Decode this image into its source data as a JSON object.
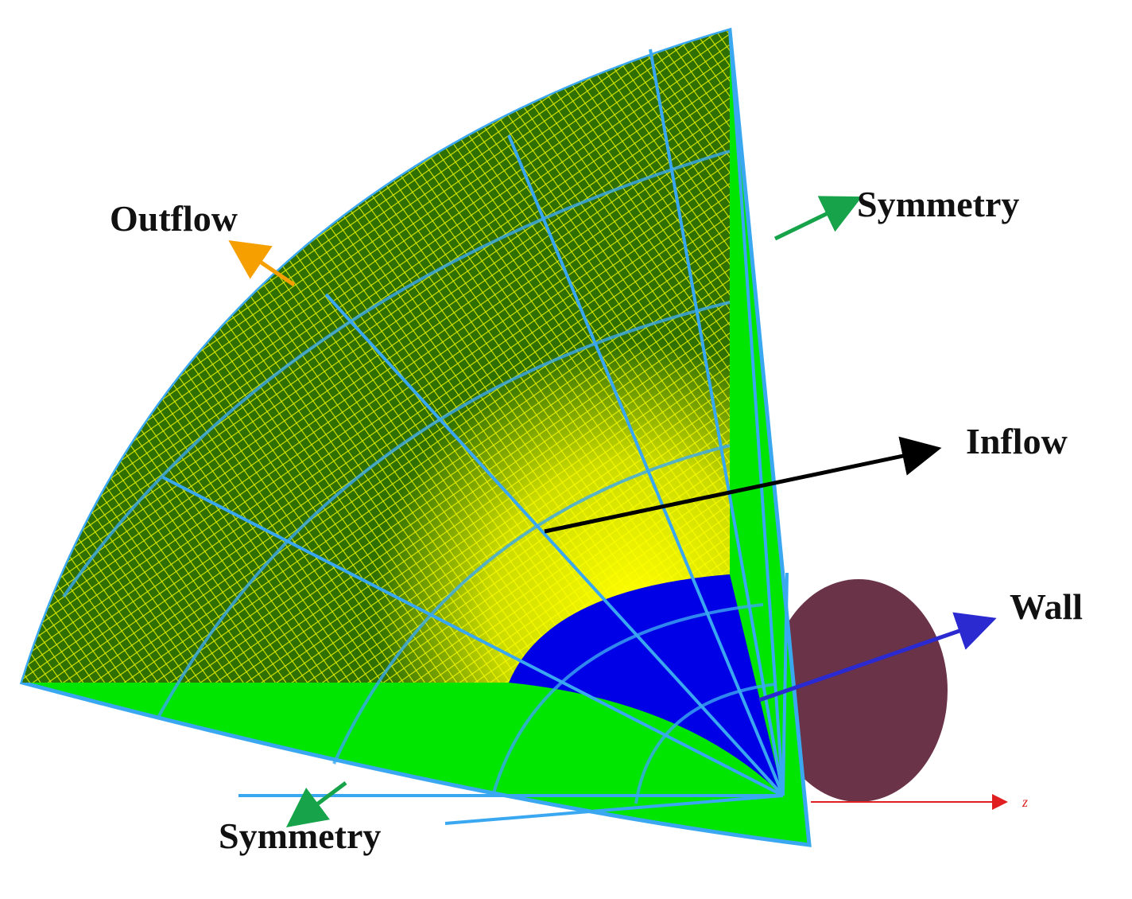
{
  "labels": {
    "outflow": "Outflow",
    "symmetry_top": "Symmetry",
    "inflow": "Inflow",
    "wall": "Wall",
    "symmetry_bottom": "Symmetry",
    "axis_z": "z"
  }
}
